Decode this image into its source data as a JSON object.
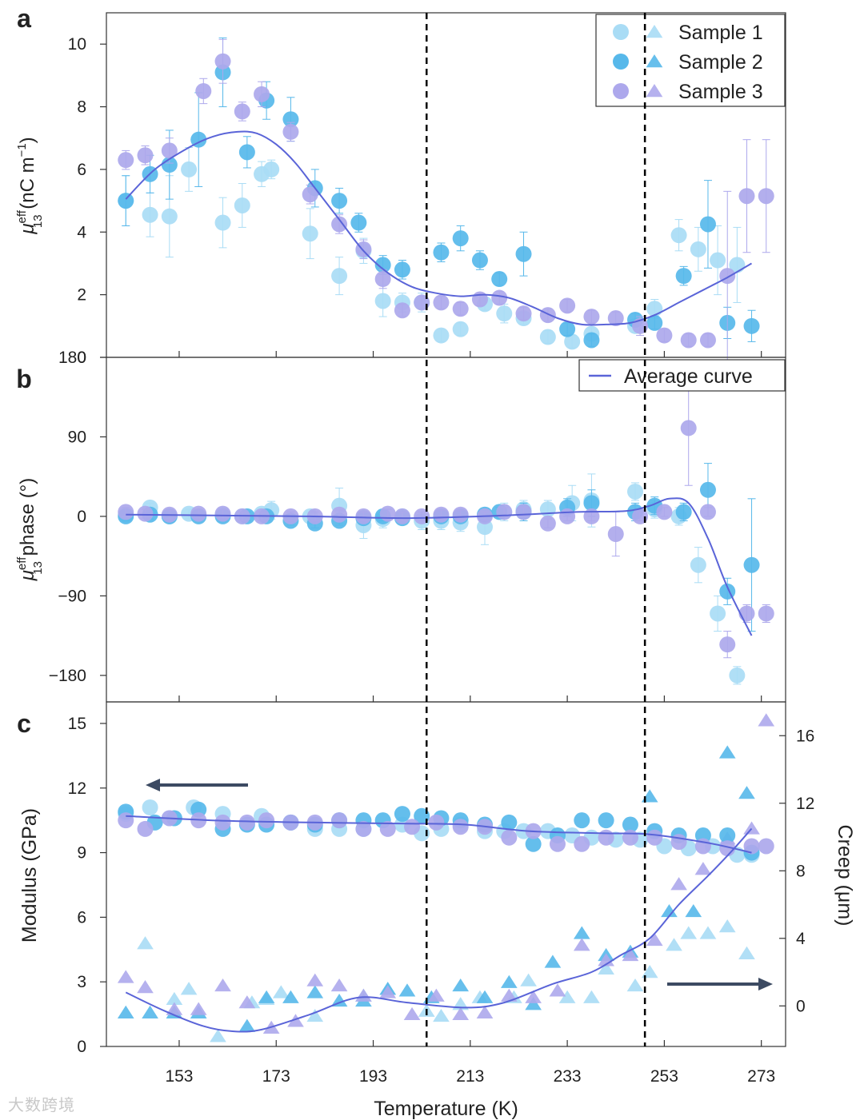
{
  "colors": {
    "sample1": "#a9dcf5",
    "sample2": "#57b8ea",
    "sample3": "#ada8ec",
    "average": "#5a64d8",
    "arrow": "#3c4a62"
  },
  "watermark": "大数跨境",
  "shared": {
    "x_label": "Temperature (K)",
    "x_ticks": [
      153,
      173,
      193,
      213,
      233,
      253,
      273
    ],
    "xlim": [
      138,
      278
    ],
    "vlines": [
      204,
      249
    ],
    "legend_samples": [
      "Sample 1",
      "Sample 2",
      "Sample 3"
    ],
    "legend_average": "Average curve"
  },
  "chart_data": [
    {
      "panel": "a",
      "type": "scatter",
      "ylabel_symbol": "μ",
      "ylabel_sup": "eff",
      "ylabel_sub": "13",
      "ylabel_rest": " (nC m",
      "ylabel_unit_sup": "−1",
      "ylabel_close": ")",
      "ylim": [
        0,
        11
      ],
      "y_ticks": [
        0,
        2,
        4,
        6,
        8,
        10
      ],
      "series": [
        {
          "name": "Sample 1",
          "x": [
            142,
            147,
            151,
            155,
            162,
            166,
            170,
            172,
            180,
            186,
            191,
            195,
            199,
            203,
            207,
            211,
            216,
            220,
            224,
            229,
            234,
            238,
            247,
            251,
            256,
            260,
            264,
            268
          ],
          "y": [
            5.0,
            4.55,
            4.5,
            6.0,
            4.3,
            4.85,
            5.85,
            6.0,
            3.95,
            2.6,
            3.4,
            1.8,
            1.75,
            1.75,
            0.7,
            0.9,
            1.7,
            1.4,
            1.25,
            0.65,
            0.5,
            0.75,
            1.0,
            1.55,
            3.9,
            3.45,
            3.1,
            2.95
          ],
          "err": [
            0.8,
            0.7,
            1.3,
            0.7,
            0.8,
            0.7,
            0.4,
            0.3,
            0.8,
            0.6,
            0.4,
            0.5,
            0.3,
            0.3,
            0.2,
            0.2,
            0.2,
            0.3,
            0.2,
            0.2,
            0.2,
            0.2,
            0.2,
            0.3,
            0.5,
            0.7,
            1.1,
            1.2
          ]
        },
        {
          "name": "Sample 2",
          "x": [
            142,
            147,
            151,
            157,
            162,
            167,
            171,
            176,
            181,
            186,
            190,
            195,
            199,
            207,
            211,
            215,
            219,
            224,
            233,
            238,
            247,
            251,
            257,
            262,
            266,
            271
          ],
          "y": [
            5.0,
            5.85,
            6.15,
            6.95,
            9.1,
            6.55,
            8.2,
            7.6,
            5.4,
            5.0,
            4.3,
            2.95,
            2.8,
            3.35,
            3.8,
            3.1,
            2.5,
            3.3,
            0.9,
            0.55,
            1.2,
            1.1,
            2.6,
            4.25,
            1.1,
            1.0
          ],
          "err": [
            0.8,
            0.6,
            1.1,
            1.5,
            1.1,
            0.5,
            0.6,
            0.7,
            0.6,
            0.4,
            0.3,
            0.3,
            0.3,
            0.3,
            0.4,
            0.3,
            0.2,
            0.7,
            0.2,
            0.2,
            0.2,
            0.2,
            0.3,
            1.4,
            0.5,
            0.5
          ]
        },
        {
          "name": "Sample 3",
          "x": [
            142,
            146,
            151,
            158,
            162,
            166,
            170,
            176,
            180,
            186,
            191,
            195,
            199,
            203,
            207,
            211,
            215,
            219,
            224,
            229,
            233,
            238,
            243,
            248,
            253,
            258,
            262,
            266,
            270,
            274
          ],
          "y": [
            6.3,
            6.45,
            6.6,
            8.5,
            9.45,
            7.85,
            8.4,
            7.2,
            5.2,
            4.25,
            3.45,
            2.5,
            1.5,
            1.75,
            1.75,
            1.55,
            1.85,
            1.9,
            1.4,
            1.35,
            1.65,
            1.3,
            1.25,
            1.0,
            0.7,
            0.55,
            0.55,
            2.6,
            5.15,
            5.15
          ],
          "err": [
            0.3,
            0.3,
            0.4,
            0.4,
            0.7,
            0.3,
            0.4,
            0.3,
            0.3,
            0.3,
            0.3,
            0.3,
            0.2,
            0.2,
            0.2,
            0.2,
            0.2,
            0.2,
            0.2,
            0.2,
            0.2,
            0.2,
            0.2,
            0.3,
            0.2,
            0.2,
            0.2,
            2.7,
            1.8,
            1.8
          ]
        }
      ],
      "average_x": [
        142,
        148,
        155,
        160,
        165,
        169,
        173,
        177,
        181,
        186,
        191,
        196,
        201,
        206,
        211,
        216,
        221,
        226,
        231,
        236,
        241,
        246,
        251,
        256,
        261,
        266,
        271
      ],
      "average_y": [
        5.05,
        6.0,
        6.7,
        7.05,
        7.2,
        7.15,
        6.8,
        6.2,
        5.4,
        4.4,
        3.4,
        2.7,
        2.25,
        2.05,
        1.95,
        2.0,
        1.9,
        1.6,
        1.25,
        1.05,
        1.05,
        1.1,
        1.35,
        1.75,
        2.15,
        2.55,
        3.0
      ]
    },
    {
      "panel": "b",
      "type": "scatter",
      "ylabel_symbol": "μ",
      "ylabel_sup": "eff",
      "ylabel_sub": "13",
      "ylabel_rest": " phase (°)",
      "ylim": [
        -210,
        180
      ],
      "y_ticks": [
        180,
        90,
        0,
        -90,
        -180
      ],
      "series": [
        {
          "name": "Sample 1",
          "x": [
            142,
            147,
            151,
            155,
            162,
            166,
            170,
            172,
            180,
            186,
            191,
            195,
            199,
            203,
            207,
            211,
            216,
            220,
            224,
            229,
            234,
            238,
            247,
            251,
            256,
            260,
            264,
            268
          ],
          "y": [
            2,
            10,
            0,
            3,
            2,
            0,
            3,
            7,
            0,
            12,
            -10,
            -3,
            0,
            -5,
            -5,
            -7,
            -12,
            5,
            8,
            8,
            15,
            18,
            28,
            8,
            0,
            -55,
            -110,
            -180
          ],
          "err": [
            5,
            5,
            5,
            5,
            5,
            5,
            5,
            10,
            5,
            20,
            15,
            10,
            5,
            10,
            10,
            10,
            20,
            10,
            10,
            10,
            20,
            30,
            10,
            10,
            10,
            20,
            20,
            10
          ]
        },
        {
          "name": "Sample 2",
          "x": [
            142,
            147,
            151,
            157,
            162,
            167,
            171,
            176,
            181,
            186,
            191,
            195,
            199,
            207,
            211,
            216,
            219,
            224,
            233,
            238,
            247,
            251,
            257,
            262,
            266,
            271
          ],
          "y": [
            0,
            2,
            0,
            0,
            0,
            0,
            0,
            -5,
            -8,
            -5,
            -2,
            0,
            -2,
            0,
            0,
            2,
            5,
            5,
            10,
            15,
            5,
            12,
            5,
            30,
            -85,
            -55
          ],
          "err": [
            5,
            5,
            5,
            5,
            5,
            5,
            5,
            5,
            5,
            5,
            5,
            5,
            5,
            5,
            5,
            5,
            5,
            10,
            10,
            15,
            10,
            10,
            10,
            30,
            15,
            75
          ]
        },
        {
          "name": "Sample 3",
          "x": [
            142,
            146,
            151,
            157,
            162,
            166,
            170,
            176,
            181,
            186,
            191,
            196,
            199,
            203,
            207,
            211,
            216,
            220,
            224,
            229,
            233,
            238,
            243,
            248,
            253,
            258,
            262,
            266,
            270,
            274
          ],
          "y": [
            5,
            3,
            2,
            3,
            3,
            0,
            0,
            0,
            0,
            2,
            0,
            3,
            0,
            0,
            2,
            2,
            0,
            5,
            5,
            -8,
            0,
            0,
            -20,
            0,
            5,
            100,
            5,
            -145,
            -110,
            -110
          ],
          "err": [
            5,
            5,
            5,
            5,
            5,
            5,
            5,
            5,
            5,
            5,
            5,
            5,
            5,
            5,
            5,
            5,
            5,
            5,
            5,
            5,
            5,
            5,
            25,
            5,
            5,
            65,
            5,
            15,
            10,
            10
          ]
        }
      ],
      "average_x": [
        142,
        160,
        180,
        200,
        220,
        235,
        245,
        250,
        254,
        258,
        262,
        266,
        271
      ],
      "average_y": [
        2,
        1,
        0,
        -2,
        1,
        5,
        6,
        12,
        20,
        15,
        -25,
        -80,
        -135
      ]
    },
    {
      "panel": "c",
      "type": "scatter",
      "ylabel": "Modulus (GPa)",
      "ylim": [
        0,
        16
      ],
      "y_ticks": [
        0,
        3,
        6,
        9,
        12,
        15
      ],
      "ylabel_right": "Creep (μm)",
      "ylim_right": [
        -2.4,
        18
      ],
      "y_ticks_right": [
        0,
        4,
        8,
        12,
        16
      ],
      "modulus_series": [
        {
          "name": "Sample 1",
          "x": [
            142,
            147,
            151,
            156,
            162,
            170,
            176,
            181,
            186,
            191,
            199,
            203,
            207,
            211,
            216,
            220,
            224,
            229,
            234,
            238,
            243,
            248,
            253,
            258,
            263,
            268,
            271
          ],
          "y": [
            10.8,
            11.1,
            10.6,
            11.1,
            10.8,
            10.7,
            10.4,
            10.1,
            10.1,
            10.1,
            10.3,
            9.9,
            10.1,
            10.3,
            10.0,
            10.0,
            10.0,
            10.0,
            9.8,
            9.7,
            9.6,
            9.6,
            9.3,
            9.2,
            9.3,
            8.9,
            8.9
          ]
        },
        {
          "name": "Sample 2",
          "x": [
            142,
            148,
            152,
            157,
            162,
            167,
            171,
            176,
            181,
            186,
            191,
            195,
            199,
            203,
            207,
            211,
            216,
            221,
            226,
            231,
            236,
            241,
            246,
            251,
            256,
            261,
            266,
            271
          ],
          "y": [
            10.9,
            10.4,
            10.6,
            11.0,
            10.1,
            10.3,
            10.3,
            10.4,
            10.3,
            10.5,
            10.5,
            10.5,
            10.8,
            10.7,
            10.6,
            10.5,
            10.3,
            10.4,
            9.4,
            9.8,
            10.5,
            10.5,
            10.3,
            10.0,
            9.8,
            9.8,
            9.8,
            9.0
          ]
        },
        {
          "name": "Sample 3",
          "x": [
            142,
            146,
            151,
            157,
            162,
            167,
            171,
            176,
            181,
            186,
            191,
            196,
            201,
            206,
            211,
            216,
            221,
            226,
            231,
            236,
            241,
            246,
            251,
            256,
            261,
            266,
            271,
            274
          ],
          "y": [
            10.5,
            10.1,
            10.6,
            10.5,
            10.4,
            10.4,
            10.5,
            10.4,
            10.4,
            10.5,
            10.1,
            10.1,
            10.2,
            10.4,
            10.2,
            10.2,
            9.7,
            10.0,
            9.4,
            9.4,
            9.7,
            9.7,
            9.7,
            9.5,
            9.3,
            9.2,
            9.3,
            9.3
          ]
        }
      ],
      "creep_series": [
        {
          "name": "Sample 1",
          "x": [
            146,
            152,
            155,
            161,
            168,
            171,
            174,
            181,
            191,
            196,
            204,
            207,
            211,
            215,
            222,
            225,
            233,
            238,
            241,
            247,
            250,
            255,
            258,
            262,
            266,
            270
          ],
          "y": [
            3.7,
            0.4,
            1.0,
            -1.8,
            0.2,
            0.4,
            0.8,
            -0.6,
            0.6,
            1.0,
            -0.3,
            -0.6,
            0.1,
            0.5,
            0.5,
            1.5,
            0.5,
            0.5,
            2.2,
            1.2,
            2.0,
            3.6,
            4.3,
            4.3,
            4.7,
            3.1
          ]
        },
        {
          "name": "Sample 2",
          "x": [
            142,
            147,
            152,
            157,
            167,
            171,
            176,
            181,
            186,
            191,
            196,
            200,
            205,
            211,
            216,
            221,
            226,
            230,
            236,
            241,
            246,
            250,
            254,
            259,
            266,
            270
          ],
          "y": [
            -0.4,
            -0.4,
            -0.4,
            -0.4,
            -1.2,
            0.5,
            0.5,
            0.8,
            0.3,
            0.3,
            1.0,
            0.9,
            0.5,
            1.2,
            0.5,
            1.4,
            0.1,
            2.6,
            4.3,
            3.0,
            3.2,
            12.4,
            5.6,
            5.6,
            15.0,
            12.6
          ]
        },
        {
          "name": "Sample 3",
          "x": [
            142,
            146,
            152,
            157,
            162,
            167,
            172,
            177,
            181,
            186,
            191,
            196,
            201,
            206,
            211,
            216,
            221,
            226,
            231,
            236,
            241,
            246,
            251,
            256,
            261,
            266,
            271,
            274
          ],
          "y": [
            1.7,
            1.1,
            -0.2,
            -0.2,
            1.2,
            0.2,
            -1.3,
            -0.9,
            1.5,
            1.2,
            0.6,
            0.8,
            -0.5,
            0.6,
            -0.5,
            -0.4,
            0.6,
            0.5,
            0.9,
            3.6,
            2.7,
            3.0,
            3.9,
            7.2,
            8.1,
            9.9,
            10.5,
            16.9
          ]
        }
      ],
      "average_modulus_x": [
        142,
        160,
        180,
        200,
        212,
        225,
        240,
        250,
        262,
        271
      ],
      "average_modulus_y": [
        10.7,
        10.5,
        10.4,
        10.35,
        10.3,
        10.0,
        9.9,
        9.85,
        9.45,
        9.0
      ],
      "average_creep_x": [
        142,
        150,
        158,
        164,
        170,
        180,
        190,
        200,
        212,
        220,
        230,
        238,
        244,
        250,
        256,
        262,
        267,
        271
      ],
      "average_creep_y": [
        0.8,
        -0.3,
        -1.2,
        -1.5,
        -1.4,
        -0.5,
        0.5,
        0.2,
        -0.1,
        0.2,
        1.3,
        2.0,
        3.0,
        4.0,
        6.0,
        7.7,
        9.2,
        10.5
      ]
    }
  ]
}
